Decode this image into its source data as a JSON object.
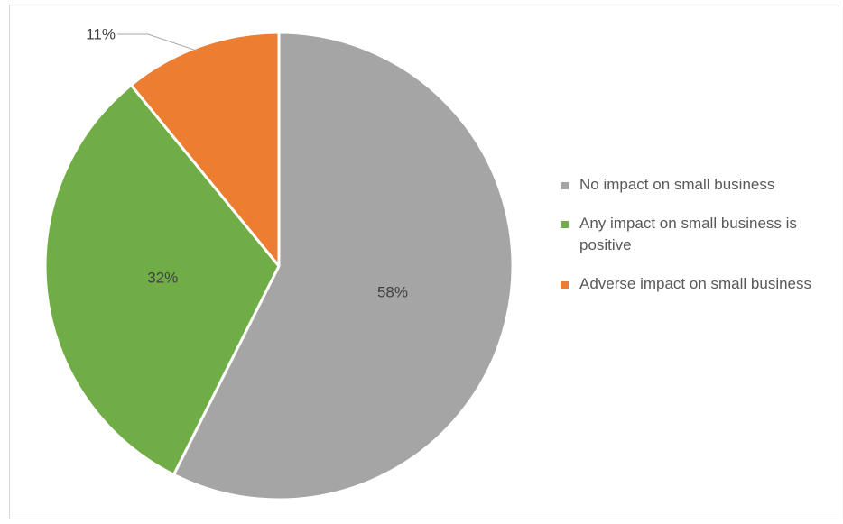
{
  "chart_data": {
    "type": "pie",
    "slices": [
      {
        "label": "No impact on small business",
        "value": 58,
        "display": "58%",
        "color": "#a5a5a5"
      },
      {
        "label": "Any impact on small business is positive",
        "value": 32,
        "display": "32%",
        "color": "#70ad47"
      },
      {
        "label": "Adverse impact on small business",
        "value": 11,
        "display": "11%",
        "color": "#ed7d31"
      }
    ],
    "title": "",
    "legend_position": "right",
    "legend": [
      {
        "label": "No impact on small business",
        "color": "#a5a5a5"
      },
      {
        "label": "Any impact on small business is positive",
        "color": "#70ad47"
      },
      {
        "label": "Adverse impact on small business",
        "color": "#ed7d31"
      }
    ]
  }
}
